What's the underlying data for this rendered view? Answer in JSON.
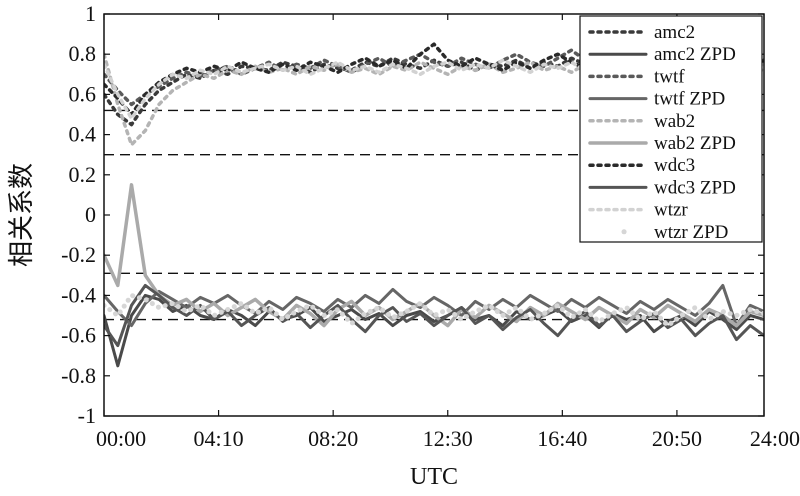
{
  "chart_data": {
    "type": "line",
    "xlabel": "UTC",
    "ylabel": "相关系数",
    "ylim": [
      -1,
      1
    ],
    "y_ticks": [
      "1",
      "0.8",
      "0.6",
      "0.4",
      "0.2",
      "0",
      "-0.2",
      "-0.4",
      "-0.6",
      "-0.8",
      "-1"
    ],
    "y_tick_values": [
      1,
      0.8,
      0.6,
      0.4,
      0.2,
      0,
      -0.2,
      -0.4,
      -0.6,
      -0.8,
      -1
    ],
    "x_tick_labels": [
      "00:00",
      "04:10",
      "08:20",
      "12:30",
      "16:40",
      "20:50",
      "24:00"
    ],
    "x_tick_hours": [
      0,
      4.1667,
      8.3333,
      12.5,
      16.6667,
      20.8333,
      24
    ],
    "xlim_hours": [
      0,
      24
    ],
    "grid": false,
    "legend_position": "top-right",
    "reference_lines": [
      0.52,
      0.3,
      -0.29,
      -0.52
    ],
    "x_hours": [
      0,
      0.5,
      1,
      1.5,
      2,
      2.5,
      3,
      3.5,
      4,
      4.5,
      5,
      5.5,
      6,
      6.5,
      7,
      7.5,
      8,
      8.5,
      9,
      9.5,
      10,
      10.5,
      11,
      11.5,
      12,
      12.5,
      13,
      13.5,
      14,
      14.5,
      15,
      15.5,
      16,
      16.5,
      17,
      17.5,
      18,
      18.5,
      19,
      19.5,
      20,
      20.5,
      21,
      21.5,
      22,
      22.5,
      23,
      23.5,
      24
    ],
    "series": [
      {
        "name": "amc2",
        "style": "dotted",
        "color": "#3a3a3a",
        "width": 3.5,
        "values": [
          0.6,
          0.5,
          0.45,
          0.55,
          0.62,
          0.66,
          0.7,
          0.68,
          0.72,
          0.7,
          0.74,
          0.73,
          0.72,
          0.76,
          0.74,
          0.71,
          0.75,
          0.73,
          0.72,
          0.76,
          0.74,
          0.78,
          0.75,
          0.73,
          0.77,
          0.74,
          0.76,
          0.72,
          0.75,
          0.74,
          0.77,
          0.73,
          0.76,
          0.74,
          0.78,
          0.75,
          0.73,
          0.76,
          0.74,
          0.77,
          0.75,
          0.73,
          0.76,
          0.74,
          0.78,
          0.75,
          0.77,
          0.74,
          0.76
        ]
      },
      {
        "name": "amc2 ZPD",
        "style": "solid",
        "color": "#4a4a4a",
        "width": 3,
        "values": [
          -0.5,
          -0.75,
          -0.5,
          -0.4,
          -0.42,
          -0.48,
          -0.45,
          -0.5,
          -0.52,
          -0.47,
          -0.5,
          -0.55,
          -0.48,
          -0.52,
          -0.5,
          -0.46,
          -0.53,
          -0.5,
          -0.47,
          -0.52,
          -0.49,
          -0.55,
          -0.5,
          -0.48,
          -0.53,
          -0.5,
          -0.46,
          -0.52,
          -0.5,
          -0.55,
          -0.48,
          -0.52,
          -0.5,
          -0.47,
          -0.53,
          -0.5,
          -0.56,
          -0.49,
          -0.52,
          -0.5,
          -0.58,
          -0.53,
          -0.5,
          -0.55,
          -0.48,
          -0.52,
          -0.57,
          -0.5,
          -0.52
        ]
      },
      {
        "name": "twtf",
        "style": "dotted",
        "color": "#5a5a5a",
        "width": 3.5,
        "values": [
          0.7,
          0.62,
          0.55,
          0.6,
          0.64,
          0.68,
          0.71,
          0.69,
          0.72,
          0.74,
          0.7,
          0.73,
          0.76,
          0.72,
          0.75,
          0.73,
          0.77,
          0.74,
          0.71,
          0.75,
          0.78,
          0.74,
          0.77,
          0.8,
          0.76,
          0.74,
          0.78,
          0.75,
          0.73,
          0.77,
          0.8,
          0.76,
          0.74,
          0.78,
          0.82,
          0.77,
          0.75,
          0.79,
          0.76,
          0.8,
          0.77,
          0.75,
          0.79,
          0.82,
          0.78,
          0.76,
          0.8,
          0.78,
          0.77
        ]
      },
      {
        "name": "twtf ZPD",
        "style": "solid",
        "color": "#666666",
        "width": 3,
        "values": [
          -0.4,
          -0.48,
          -0.55,
          -0.44,
          -0.38,
          -0.42,
          -0.46,
          -0.41,
          -0.44,
          -0.4,
          -0.45,
          -0.49,
          -0.43,
          -0.47,
          -0.41,
          -0.44,
          -0.48,
          -0.42,
          -0.46,
          -0.4,
          -0.44,
          -0.37,
          -0.43,
          -0.46,
          -0.41,
          -0.45,
          -0.5,
          -0.43,
          -0.47,
          -0.42,
          -0.46,
          -0.4,
          -0.44,
          -0.48,
          -0.42,
          -0.46,
          -0.41,
          -0.45,
          -0.49,
          -0.43,
          -0.47,
          -0.42,
          -0.46,
          -0.5,
          -0.44,
          -0.35,
          -0.55,
          -0.45,
          -0.48
        ]
      },
      {
        "name": "wab2",
        "style": "dotted",
        "color": "#b4b4b4",
        "width": 3.5,
        "values": [
          0.8,
          0.55,
          0.35,
          0.42,
          0.55,
          0.62,
          0.66,
          0.7,
          0.68,
          0.72,
          0.7,
          0.74,
          0.71,
          0.73,
          0.7,
          0.74,
          0.72,
          0.75,
          0.71,
          0.73,
          0.7,
          0.74,
          0.72,
          0.76,
          0.73,
          0.7,
          0.74,
          0.72,
          0.75,
          0.71,
          0.73,
          0.76,
          0.72,
          0.74,
          0.71,
          0.75,
          0.73,
          0.7,
          0.74,
          0.72,
          0.76,
          0.73,
          0.71,
          0.75,
          0.72,
          0.74,
          0.7,
          0.73,
          0.72
        ]
      },
      {
        "name": "wab2 ZPD",
        "style": "solid",
        "color": "#aaaaaa",
        "width": 3.5,
        "values": [
          -0.2,
          -0.35,
          0.15,
          -0.3,
          -0.4,
          -0.45,
          -0.42,
          -0.48,
          -0.44,
          -0.5,
          -0.46,
          -0.42,
          -0.48,
          -0.52,
          -0.45,
          -0.49,
          -0.55,
          -0.47,
          -0.43,
          -0.5,
          -0.46,
          -0.52,
          -0.48,
          -0.44,
          -0.5,
          -0.55,
          -0.47,
          -0.51,
          -0.45,
          -0.49,
          -0.53,
          -0.46,
          -0.5,
          -0.44,
          -0.48,
          -0.52,
          -0.46,
          -0.5,
          -0.54,
          -0.47,
          -0.51,
          -0.45,
          -0.49,
          -0.53,
          -0.47,
          -0.5,
          -0.55,
          -0.48,
          -0.5
        ]
      },
      {
        "name": "wdc3",
        "style": "dotted",
        "color": "#2a2a2a",
        "width": 3.5,
        "values": [
          0.65,
          0.58,
          0.5,
          0.6,
          0.66,
          0.7,
          0.73,
          0.71,
          0.74,
          0.72,
          0.76,
          0.73,
          0.71,
          0.75,
          0.72,
          0.76,
          0.74,
          0.71,
          0.75,
          0.78,
          0.74,
          0.77,
          0.73,
          0.8,
          0.85,
          0.77,
          0.74,
          0.78,
          0.75,
          0.72,
          0.76,
          0.73,
          0.77,
          0.8,
          0.76,
          0.73,
          0.77,
          0.74,
          0.78,
          0.75,
          0.72,
          0.76,
          0.79,
          0.75,
          0.73,
          0.77,
          0.74,
          0.78,
          0.76
        ]
      },
      {
        "name": "wdc3 ZPD",
        "style": "solid",
        "color": "#555555",
        "width": 3,
        "values": [
          -0.55,
          -0.65,
          -0.45,
          -0.35,
          -0.4,
          -0.46,
          -0.5,
          -0.45,
          -0.52,
          -0.48,
          -0.55,
          -0.5,
          -0.46,
          -0.53,
          -0.49,
          -0.56,
          -0.5,
          -0.45,
          -0.52,
          -0.58,
          -0.5,
          -0.46,
          -0.53,
          -0.49,
          -0.55,
          -0.5,
          -0.46,
          -0.54,
          -0.5,
          -0.57,
          -0.51,
          -0.47,
          -0.54,
          -0.6,
          -0.52,
          -0.48,
          -0.55,
          -0.5,
          -0.58,
          -0.53,
          -0.49,
          -0.56,
          -0.52,
          -0.6,
          -0.54,
          -0.5,
          -0.62,
          -0.55,
          -0.6
        ]
      },
      {
        "name": "wtzr",
        "style": "dotted",
        "color": "#d2d2d2",
        "width": 3.5,
        "values": [
          0.75,
          0.6,
          0.48,
          0.58,
          0.65,
          0.7,
          0.68,
          0.72,
          0.7,
          0.74,
          0.71,
          0.73,
          0.75,
          0.72,
          0.74,
          0.7,
          0.73,
          0.76,
          0.72,
          0.74,
          0.71,
          0.75,
          0.73,
          0.7,
          0.74,
          0.76,
          0.72,
          0.75,
          0.73,
          0.77,
          0.74,
          0.71,
          0.75,
          0.73,
          0.76,
          0.72,
          0.74,
          0.71,
          0.75,
          0.77,
          0.73,
          0.76,
          0.74,
          0.71,
          0.75,
          0.73,
          0.77,
          0.74,
          0.75
        ]
      },
      {
        "name": "wtzr ZPD",
        "style": "dots",
        "color": "#d6d6d6",
        "width": 5,
        "values": [
          -0.45,
          -0.5,
          -0.4,
          -0.42,
          -0.46,
          -0.44,
          -0.48,
          -0.45,
          -0.5,
          -0.47,
          -0.44,
          -0.49,
          -0.46,
          -0.52,
          -0.48,
          -0.45,
          -0.5,
          -0.47,
          -0.54,
          -0.49,
          -0.46,
          -0.51,
          -0.48,
          -0.44,
          -0.5,
          -0.47,
          -0.52,
          -0.48,
          -0.45,
          -0.5,
          -0.46,
          -0.52,
          -0.49,
          -0.45,
          -0.51,
          -0.47,
          -0.53,
          -0.49,
          -0.46,
          -0.52,
          -0.48,
          -0.55,
          -0.5,
          -0.46,
          -0.52,
          -0.48,
          -0.5,
          -0.47,
          -0.49
        ]
      }
    ]
  }
}
